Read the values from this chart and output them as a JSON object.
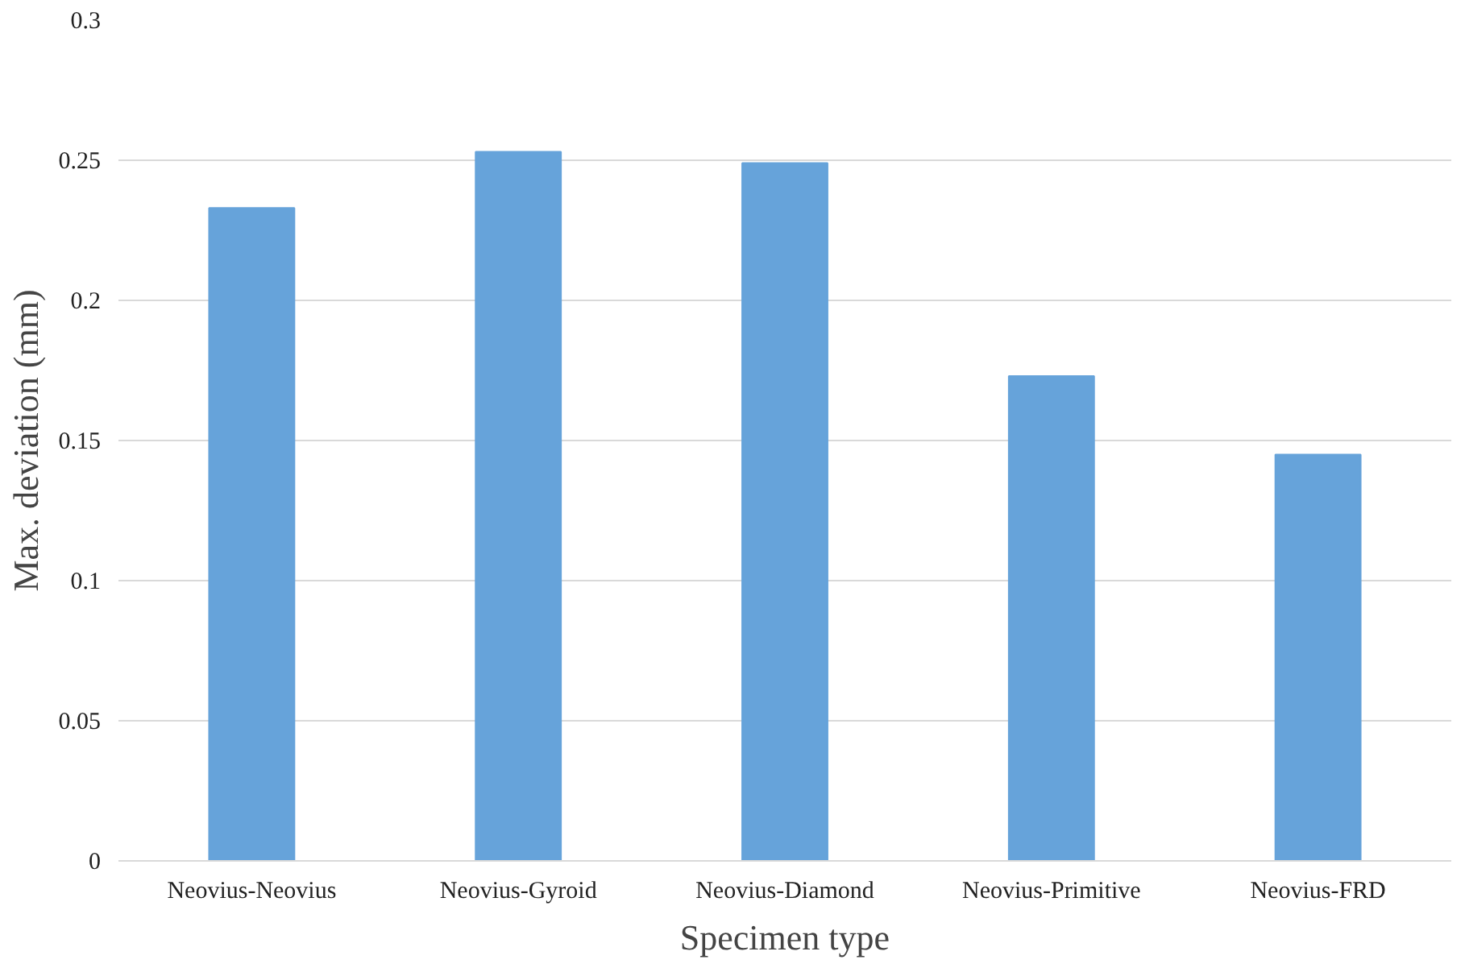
{
  "chart_data": {
    "type": "bar",
    "xlabel": "Specimen type",
    "ylabel": "Max. deviation (mm)",
    "categories": [
      "Neovius-Neovius",
      "Neovius-Gyroid",
      "Neovius-Diamond",
      "Neovius-Primitive",
      "Neovius-FRD"
    ],
    "values": [
      0.233,
      0.253,
      0.249,
      0.173,
      0.145
    ],
    "color": "#66a3da",
    "ylim": [
      0,
      0.3
    ],
    "yticks": [
      0,
      0.05,
      0.1,
      0.15,
      0.2,
      0.25,
      0.3
    ],
    "grid": "y"
  }
}
